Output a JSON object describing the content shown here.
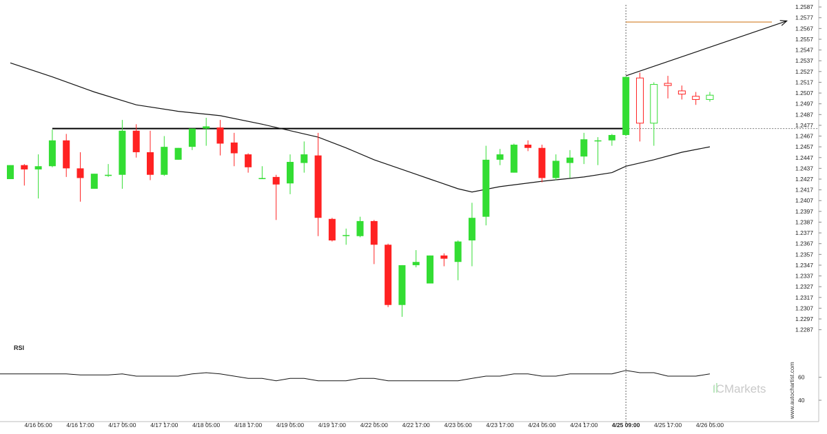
{
  "chart_data": {
    "type": "candlestick",
    "yticks": [
      "1.2587",
      "1.2577",
      "1.2567",
      "1.2557",
      "1.2547",
      "1.2537",
      "1.2527",
      "1.2517",
      "1.2507",
      "1.2497",
      "1.2487",
      "1.2477",
      "1.2467",
      "1.2457",
      "1.2447",
      "1.2437",
      "1.2427",
      "1.2417",
      "1.2407",
      "1.2397",
      "1.2387",
      "1.2377",
      "1.2367",
      "1.2357",
      "1.2347",
      "1.2337",
      "1.2327",
      "1.2317",
      "1.2307",
      "1.2297",
      "1.2287"
    ],
    "ylim": [
      1.2281,
      1.2589
    ],
    "xticks": [
      {
        "label": "4/16 05:00",
        "i": 2
      },
      {
        "label": "4/16 17:00",
        "i": 5
      },
      {
        "label": "4/17 05:00",
        "i": 8
      },
      {
        "label": "4/17 17:00",
        "i": 11
      },
      {
        "label": "4/18 05:00",
        "i": 14
      },
      {
        "label": "4/18 17:00",
        "i": 17
      },
      {
        "label": "4/19 05:00",
        "i": 20
      },
      {
        "label": "4/19 17:00",
        "i": 23
      },
      {
        "label": "4/22 05:00",
        "i": 26
      },
      {
        "label": "4/22 17:00",
        "i": 29
      },
      {
        "label": "4/23 05:00",
        "i": 32
      },
      {
        "label": "4/23 17:00",
        "i": 35
      },
      {
        "label": "4/24 05:00",
        "i": 38
      },
      {
        "label": "4/24 17:00",
        "i": 41
      },
      {
        "label": "4/25 09:00",
        "i": 44,
        "bold": true
      },
      {
        "label": "4/25 17:00",
        "i": 47
      },
      {
        "label": "4/26 05:00",
        "i": 50
      }
    ],
    "bull_color": "#33dd33",
    "bear_color": "#ff2222",
    "candles": [
      {
        "o": 1.2427,
        "h": 1.244,
        "l": 1.2427,
        "c": 1.244
      },
      {
        "o": 1.244,
        "h": 1.2441,
        "l": 1.2421,
        "c": 1.2436
      },
      {
        "o": 1.2436,
        "h": 1.245,
        "l": 1.2409,
        "c": 1.2439
      },
      {
        "o": 1.2439,
        "h": 1.2473,
        "l": 1.2438,
        "c": 1.2463
      },
      {
        "o": 1.2463,
        "h": 1.2469,
        "l": 1.2429,
        "c": 1.2437
      },
      {
        "o": 1.2437,
        "h": 1.2452,
        "l": 1.2406,
        "c": 1.2428
      },
      {
        "o": 1.2418,
        "h": 1.2432,
        "l": 1.2418,
        "c": 1.2432
      },
      {
        "o": 1.243,
        "h": 1.2441,
        "l": 1.2429,
        "c": 1.2431
      },
      {
        "o": 1.2431,
        "h": 1.2482,
        "l": 1.2418,
        "c": 1.2472
      },
      {
        "o": 1.2472,
        "h": 1.2478,
        "l": 1.2447,
        "c": 1.2452
      },
      {
        "o": 1.2452,
        "h": 1.2472,
        "l": 1.2426,
        "c": 1.2431
      },
      {
        "o": 1.2431,
        "h": 1.2467,
        "l": 1.243,
        "c": 1.2457
      },
      {
        "o": 1.2445,
        "h": 1.2456,
        "l": 1.2445,
        "c": 1.2456
      },
      {
        "o": 1.2457,
        "h": 1.2474,
        "l": 1.2454,
        "c": 1.2474
      },
      {
        "o": 1.2474,
        "h": 1.2484,
        "l": 1.2458,
        "c": 1.2476
      },
      {
        "o": 1.2475,
        "h": 1.2482,
        "l": 1.2449,
        "c": 1.246
      },
      {
        "o": 1.2461,
        "h": 1.247,
        "l": 1.2439,
        "c": 1.2451
      },
      {
        "o": 1.245,
        "h": 1.2451,
        "l": 1.2433,
        "c": 1.2438
      },
      {
        "o": 1.2427,
        "h": 1.2439,
        "l": 1.2427,
        "c": 1.2428
      },
      {
        "o": 1.2429,
        "h": 1.2431,
        "l": 1.2389,
        "c": 1.2422
      },
      {
        "o": 1.2423,
        "h": 1.245,
        "l": 1.2413,
        "c": 1.2443
      },
      {
        "o": 1.2442,
        "h": 1.2462,
        "l": 1.2433,
        "c": 1.245
      },
      {
        "o": 1.2449,
        "h": 1.247,
        "l": 1.2374,
        "c": 1.2391
      },
      {
        "o": 1.239,
        "h": 1.2391,
        "l": 1.2369,
        "c": 1.237
      },
      {
        "o": 1.2375,
        "h": 1.2381,
        "l": 1.2366,
        "c": 1.2375
      },
      {
        "o": 1.2374,
        "h": 1.2392,
        "l": 1.2373,
        "c": 1.2388
      },
      {
        "o": 1.2388,
        "h": 1.2389,
        "l": 1.2348,
        "c": 1.2366
      },
      {
        "o": 1.2366,
        "h": 1.2367,
        "l": 1.2308,
        "c": 1.231
      },
      {
        "o": 1.231,
        "h": 1.2347,
        "l": 1.2299,
        "c": 1.2347
      },
      {
        "o": 1.2347,
        "h": 1.2361,
        "l": 1.2345,
        "c": 1.235
      },
      {
        "o": 1.233,
        "h": 1.2356,
        "l": 1.233,
        "c": 1.2356
      },
      {
        "o": 1.2356,
        "h": 1.2358,
        "l": 1.2346,
        "c": 1.2353
      },
      {
        "o": 1.235,
        "h": 1.237,
        "l": 1.2333,
        "c": 1.2369
      },
      {
        "o": 1.237,
        "h": 1.2405,
        "l": 1.2346,
        "c": 1.2391
      },
      {
        "o": 1.2392,
        "h": 1.2458,
        "l": 1.2384,
        "c": 1.2445
      },
      {
        "o": 1.2445,
        "h": 1.2455,
        "l": 1.244,
        "c": 1.245
      },
      {
        "o": 1.2433,
        "h": 1.246,
        "l": 1.2433,
        "c": 1.2459
      },
      {
        "o": 1.2459,
        "h": 1.2463,
        "l": 1.2453,
        "c": 1.2456
      },
      {
        "o": 1.2456,
        "h": 1.2459,
        "l": 1.2424,
        "c": 1.2428
      },
      {
        "o": 1.2428,
        "h": 1.245,
        "l": 1.2426,
        "c": 1.2444
      },
      {
        "o": 1.2442,
        "h": 1.2454,
        "l": 1.2428,
        "c": 1.2447
      },
      {
        "o": 1.2448,
        "h": 1.247,
        "l": 1.2441,
        "c": 1.2464
      },
      {
        "o": 1.2463,
        "h": 1.2466,
        "l": 1.244,
        "c": 1.2463
      },
      {
        "o": 1.2463,
        "h": 1.2469,
        "l": 1.2458,
        "c": 1.2468
      },
      {
        "o": 1.2468,
        "h": 1.2522,
        "l": 1.2467,
        "c": 1.2522
      },
      {
        "o": 1.2521,
        "h": 1.2526,
        "l": 1.2462,
        "c": 1.2479
      },
      {
        "o": 1.2479,
        "h": 1.2517,
        "l": 1.2458,
        "c": 1.2515
      },
      {
        "o": 1.2516,
        "h": 1.2523,
        "l": 1.2502,
        "c": 1.2514
      },
      {
        "o": 1.2509,
        "h": 1.2514,
        "l": 1.2501,
        "c": 1.2506
      },
      {
        "o": 1.2504,
        "h": 1.2508,
        "l": 1.2496,
        "c": 1.2501
      },
      {
        "o": 1.2501,
        "h": 1.2508,
        "l": 1.2499,
        "c": 1.2505
      }
    ],
    "ma_line": [
      [
        0,
        1.2535
      ],
      [
        3,
        1.2522
      ],
      [
        6,
        1.2508
      ],
      [
        9,
        1.2496
      ],
      [
        12,
        1.249
      ],
      [
        15,
        1.2486
      ],
      [
        18,
        1.2478
      ],
      [
        20,
        1.2472
      ],
      [
        22,
        1.2466
      ],
      [
        24,
        1.2456
      ],
      [
        26,
        1.2445
      ],
      [
        28,
        1.2436
      ],
      [
        30,
        1.2427
      ],
      [
        32,
        1.2418
      ],
      [
        33,
        1.2415
      ],
      [
        35,
        1.242
      ],
      [
        38,
        1.2425
      ],
      [
        41,
        1.2429
      ],
      [
        43,
        1.2433
      ],
      [
        44,
        1.2439
      ],
      [
        46,
        1.2445
      ],
      [
        48,
        1.2452
      ],
      [
        50,
        1.2457
      ]
    ],
    "support_level": 1.2474,
    "forecast_level": 1.2573,
    "forecast_arrow": {
      "from": [
        44,
        1.2523
      ],
      "to": [
        55.5,
        1.2574
      ]
    },
    "rsi": {
      "label": "RSI",
      "ticks": [
        "60",
        "40"
      ],
      "ylim": [
        25,
        85
      ],
      "values": [
        63,
        63,
        63,
        63,
        63,
        62,
        62,
        62,
        63,
        61,
        61,
        61,
        61,
        63,
        64,
        63,
        61,
        59,
        59,
        57,
        59,
        59,
        57,
        57,
        57,
        59,
        59,
        57,
        57,
        57,
        57,
        57,
        57,
        59,
        61,
        61,
        63,
        63,
        61,
        61,
        63,
        63,
        63,
        63,
        66,
        64,
        64,
        61,
        61,
        61,
        63
      ]
    }
  },
  "branding": {
    "brand": "ICMarkets",
    "site": "www.autochartist.com"
  }
}
